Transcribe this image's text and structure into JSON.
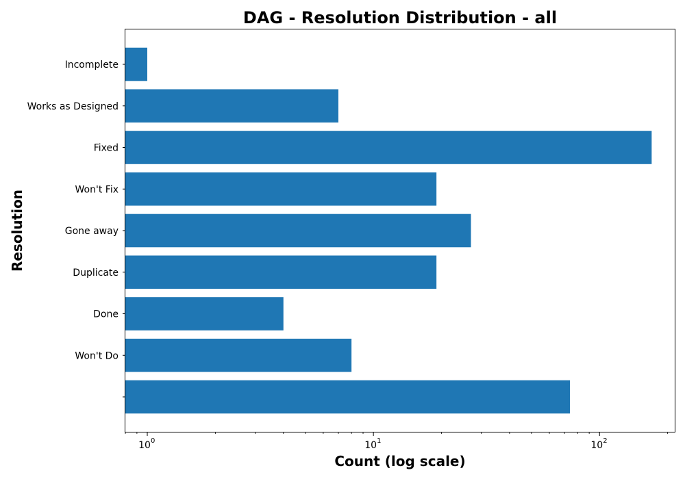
{
  "chart_data": {
    "type": "bar",
    "orientation": "horizontal",
    "title": "DAG - Resolution Distribution - all",
    "xlabel": "Count (log scale)",
    "ylabel": "Resolution",
    "x_scale": "log",
    "xlim": [
      0.8,
      215
    ],
    "x_ticks": [
      {
        "value": 1,
        "mantissa": "10",
        "exponent": "0"
      },
      {
        "value": 10,
        "mantissa": "10",
        "exponent": "1"
      },
      {
        "value": 100,
        "mantissa": "10",
        "exponent": "2"
      }
    ],
    "categories": [
      "Incomplete",
      "Works as Designed",
      "Fixed",
      "Won't Fix",
      "Gone away",
      "Duplicate",
      "Done",
      "Won't Do",
      ""
    ],
    "values": [
      1,
      7,
      170,
      19,
      27,
      19,
      4,
      8,
      74
    ],
    "bar_color": "#1f77b4",
    "grid": false,
    "legend": "none"
  }
}
